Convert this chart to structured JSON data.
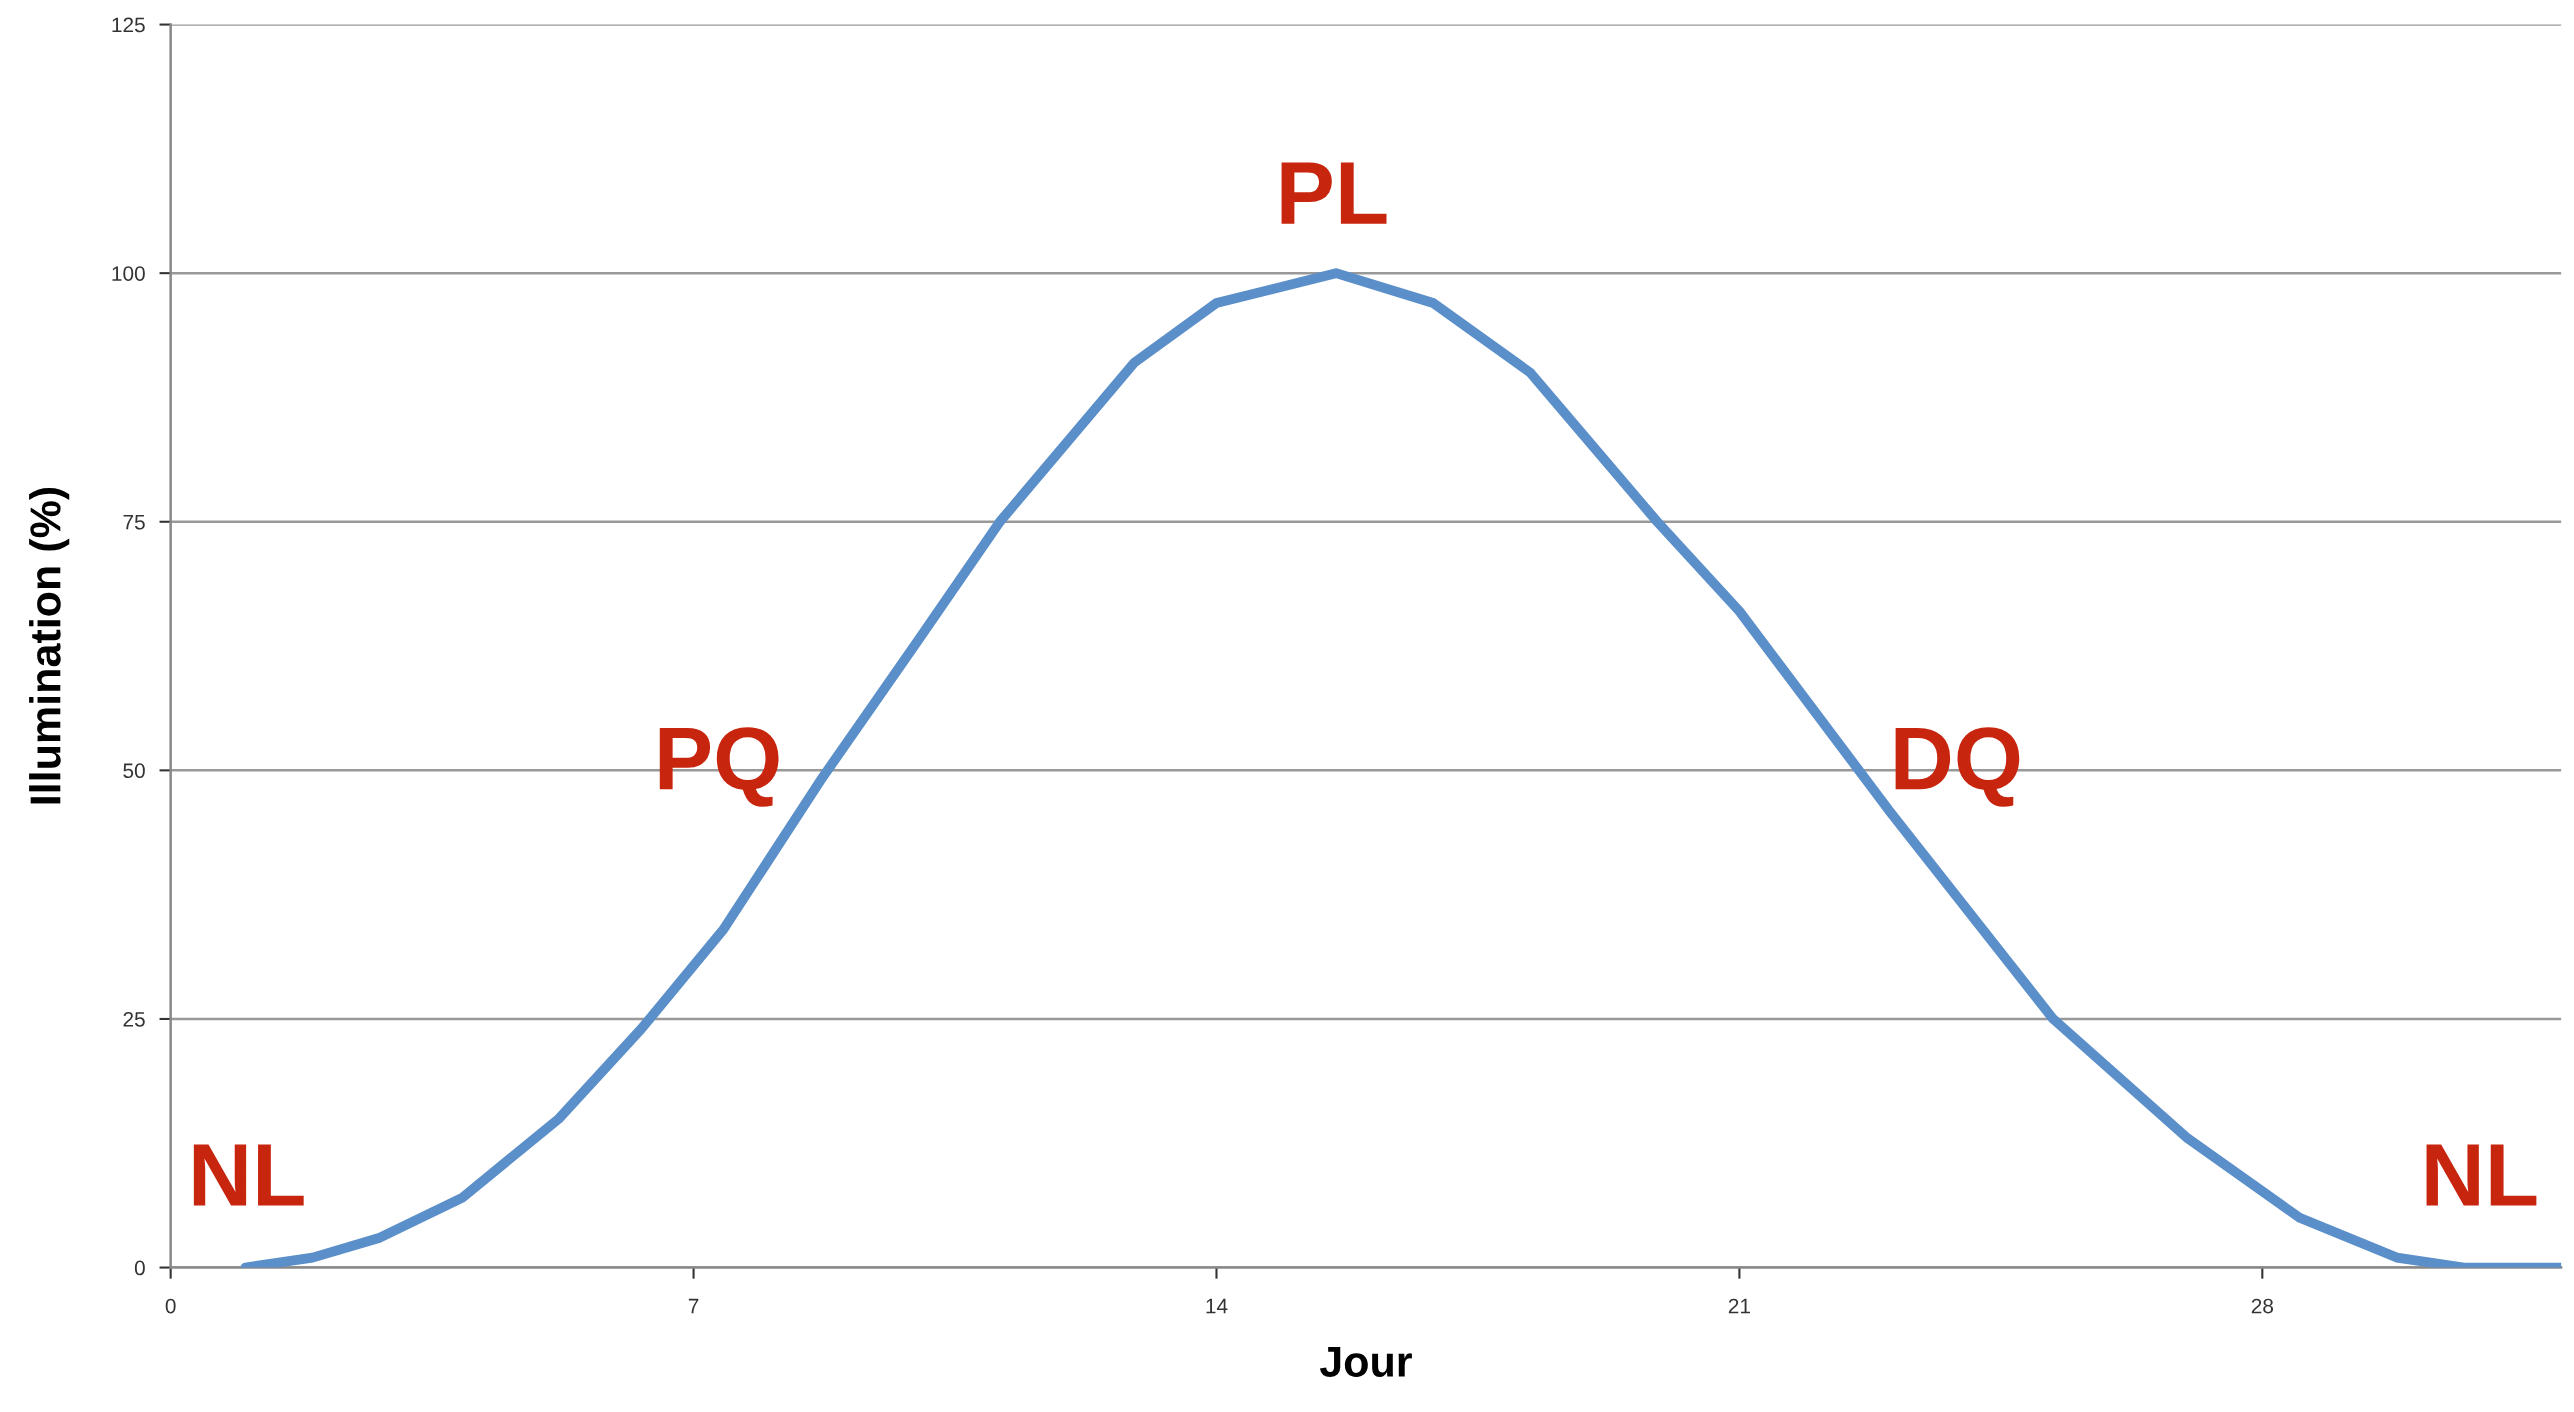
{
  "chart_data": {
    "type": "line",
    "xlabel": "Jour",
    "ylabel": "Illumination (%)",
    "series": [
      {
        "color": "#5b8fc9",
        "x": [
          1,
          1.9,
          2.8,
          3.9,
          5.2,
          6.3,
          7.4,
          8.7,
          10,
          11.1,
          12.9,
          14,
          15.6,
          16.9,
          18.2,
          19.9,
          21,
          23,
          25.2,
          27,
          28.5,
          29.8,
          30.7,
          32
        ],
        "values": [
          0,
          1,
          3,
          7,
          15,
          24,
          34,
          49,
          63,
          75,
          91,
          97,
          100,
          97,
          90,
          75,
          66,
          46,
          25,
          13,
          5,
          1,
          0,
          0
        ]
      }
    ],
    "xlim": [
      0,
      32
    ],
    "xticks": [
      0,
      7,
      14,
      21,
      28
    ],
    "ylim": [
      0,
      125
    ],
    "yticks": [
      0,
      25,
      50,
      75,
      100,
      125
    ],
    "grid": "y",
    "marker": "none",
    "line_style": "solid",
    "annotations": [
      "NL",
      "PQ",
      "PL",
      "DQ",
      "NL"
    ]
  }
}
